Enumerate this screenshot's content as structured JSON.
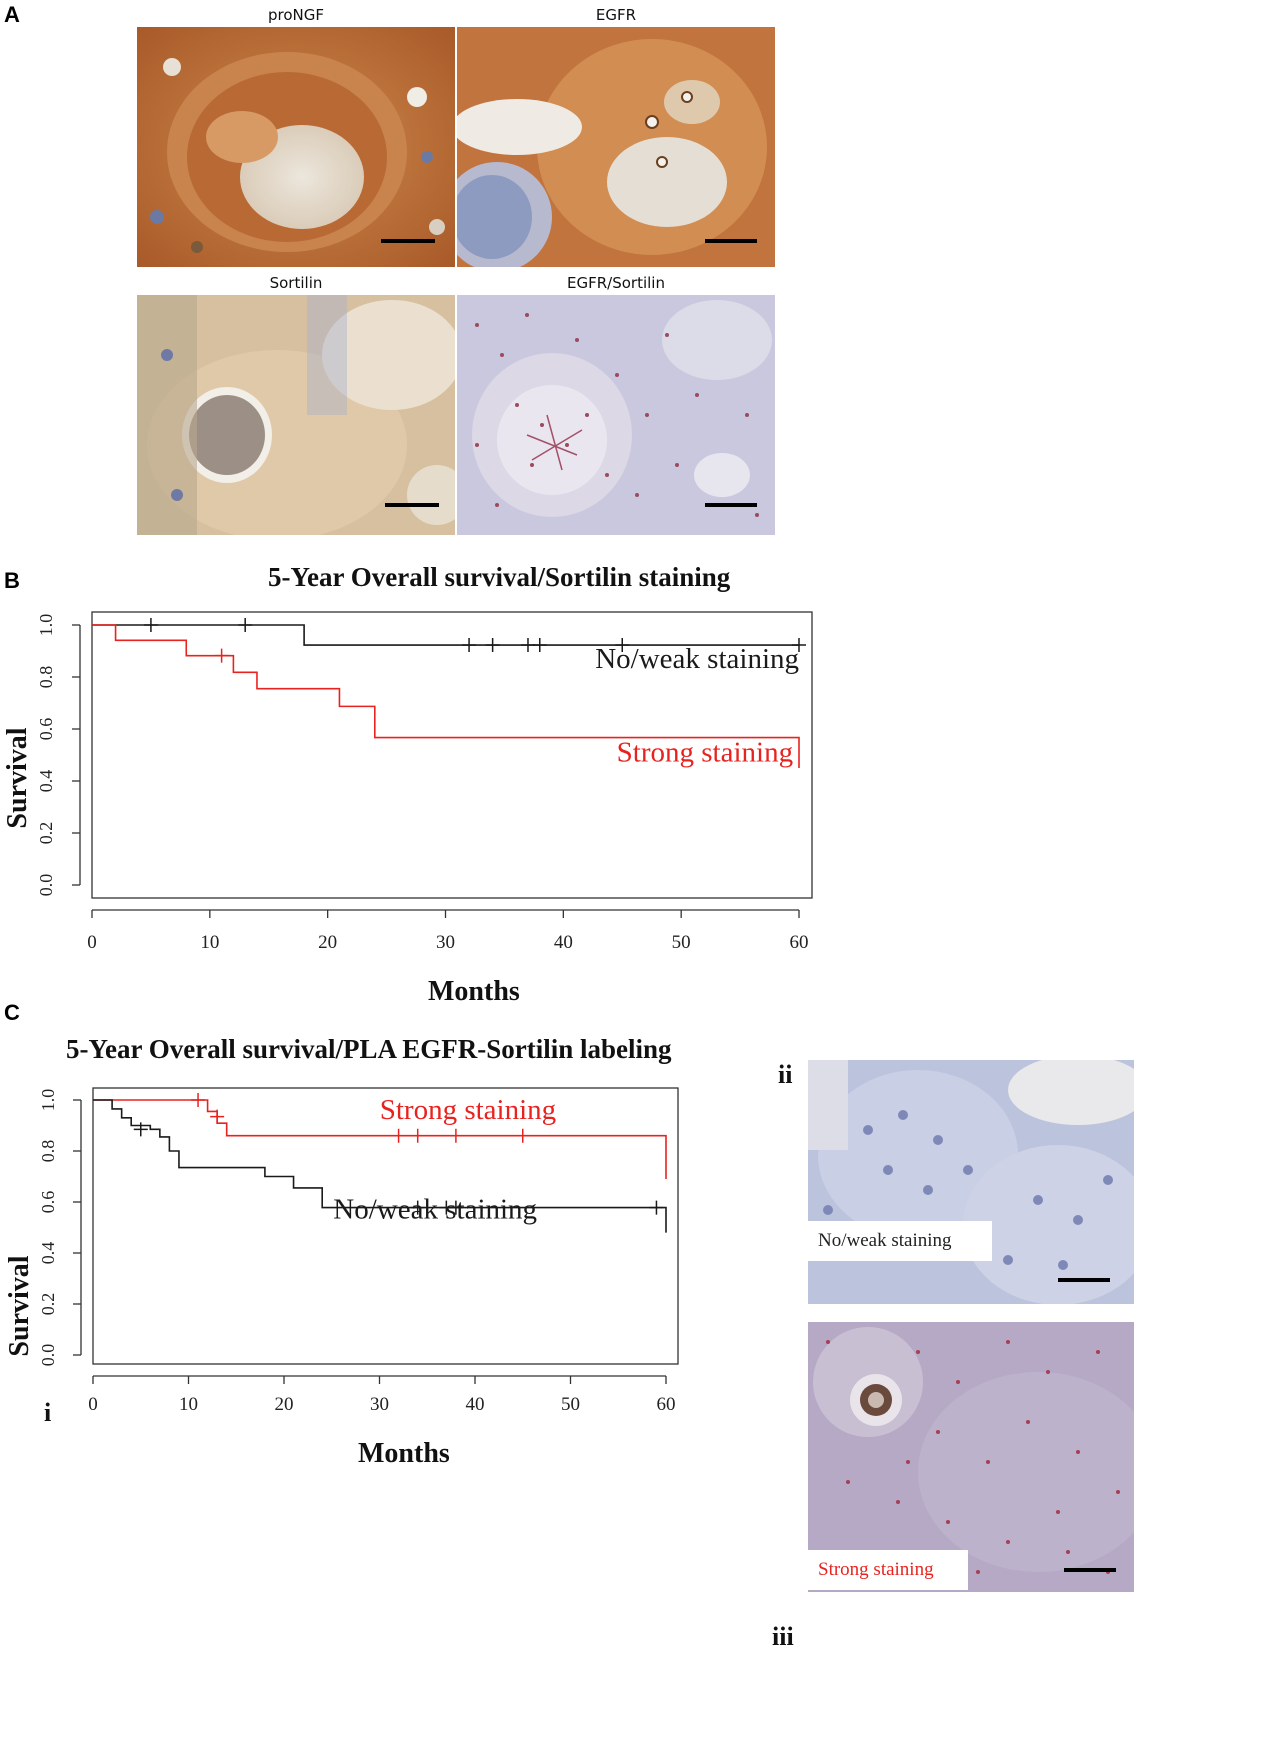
{
  "figure": {
    "panel_a": {
      "letter": "A",
      "images": [
        {
          "title": "proNGF",
          "stain": "brown"
        },
        {
          "title": "EGFR",
          "stain": "brown"
        },
        {
          "title": "Sortilin",
          "stain": "light-brown"
        },
        {
          "title": "EGFR/Sortilin",
          "stain": "purple-dots"
        }
      ]
    },
    "panel_b": {
      "letter": "B",
      "title": "5-Year Overall survival/Sortilin staining",
      "ylabel": "Survival",
      "xlabel": "Months"
    },
    "panel_c": {
      "letter": "C",
      "sub_i": "i",
      "sub_ii": "ii",
      "sub_iii": "iii",
      "title": "5-Year Overall survival/PLA EGFR-Sortilin labeling",
      "ylabel": "Survival",
      "xlabel": "Months",
      "inset_ii_label": "No/weak staining",
      "inset_iii_label": "Strong staining"
    },
    "colors": {
      "strong": "#e8231f",
      "weak": "#1a1a1a"
    }
  },
  "chart_data": [
    {
      "type": "line",
      "title": "5-Year Overall survival/Sortilin staining",
      "xlabel": "Months",
      "ylabel": "Survival",
      "xlim": [
        0,
        60
      ],
      "ylim": [
        0,
        1
      ],
      "x_ticks": [
        "0",
        "10",
        "20",
        "30",
        "40",
        "50",
        "60"
      ],
      "y_ticks": [
        "0.0",
        "0.2",
        "0.4",
        "0.6",
        "0.8",
        "1.0"
      ],
      "series": [
        {
          "name": "No/weak staining",
          "color": "#1a1a1a",
          "steps": [
            [
              0,
              1.0
            ],
            [
              18,
              0.923
            ],
            [
              60,
              0.923
            ]
          ],
          "censor": [
            [
              5,
              1.0
            ],
            [
              13,
              1.0
            ],
            [
              32,
              0.923
            ],
            [
              34,
              0.923
            ],
            [
              37,
              0.923
            ],
            [
              38,
              0.923
            ],
            [
              45,
              0.923
            ],
            [
              60,
              0.923
            ]
          ]
        },
        {
          "name": "Strong staining",
          "color": "#e8231f",
          "steps": [
            [
              0,
              1.0
            ],
            [
              2,
              0.941
            ],
            [
              8,
              0.882
            ],
            [
              12,
              0.818
            ],
            [
              14,
              0.755
            ],
            [
              21,
              0.687
            ],
            [
              24,
              0.567
            ],
            [
              60,
              0.567
            ],
            [
              60,
              0.45
            ]
          ],
          "censor": [
            [
              11,
              0.882
            ]
          ]
        }
      ]
    },
    {
      "type": "line",
      "title": "5-Year Overall survival/PLA EGFR-Sortilin labeling",
      "xlabel": "Months",
      "ylabel": "Survival",
      "xlim": [
        0,
        60
      ],
      "ylim": [
        0,
        1
      ],
      "x_ticks": [
        "0",
        "10",
        "20",
        "30",
        "40",
        "50",
        "60"
      ],
      "y_ticks": [
        "0.0",
        "0.2",
        "0.4",
        "0.6",
        "0.8",
        "1.0"
      ],
      "series": [
        {
          "name": "Strong staining",
          "color": "#e8231f",
          "steps": [
            [
              0,
              1.0
            ],
            [
              12,
              0.955
            ],
            [
              13,
              0.909
            ],
            [
              14,
              0.86
            ],
            [
              60,
              0.86
            ],
            [
              60,
              0.69
            ]
          ],
          "censor": [
            [
              11,
              1.0
            ],
            [
              13,
              0.935
            ],
            [
              32,
              0.86
            ],
            [
              34,
              0.86
            ],
            [
              38,
              0.86
            ],
            [
              45,
              0.86
            ]
          ]
        },
        {
          "name": "No/weak staining",
          "color": "#1a1a1a",
          "steps": [
            [
              0,
              1.0
            ],
            [
              2,
              0.965
            ],
            [
              3,
              0.93
            ],
            [
              4,
              0.9
            ],
            [
              6,
              0.885
            ],
            [
              7,
              0.855
            ],
            [
              8,
              0.8
            ],
            [
              9,
              0.735
            ],
            [
              18,
              0.7
            ],
            [
              21,
              0.655
            ],
            [
              24,
              0.578
            ],
            [
              60,
              0.578
            ],
            [
              60,
              0.48
            ]
          ],
          "censor": [
            [
              5,
              0.885
            ],
            [
              34,
              0.578
            ],
            [
              37,
              0.578
            ],
            [
              38,
              0.578
            ],
            [
              59,
              0.578
            ]
          ]
        }
      ]
    }
  ]
}
